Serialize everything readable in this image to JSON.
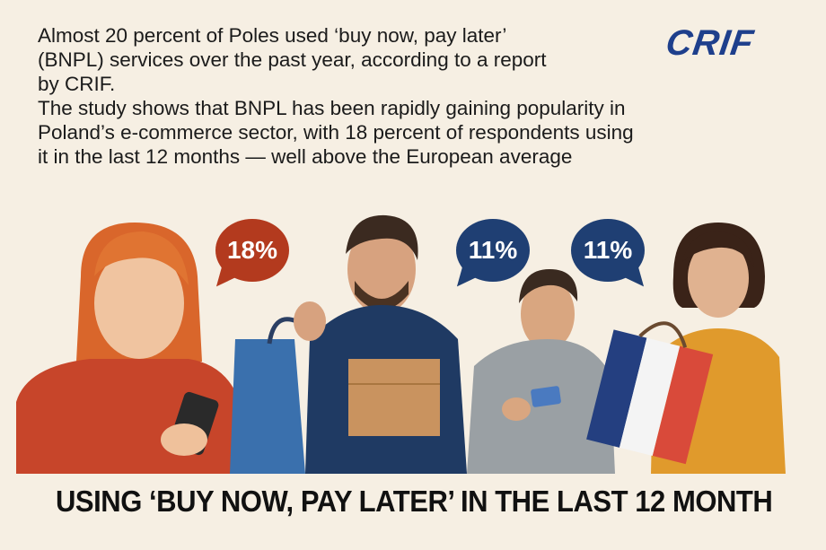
{
  "headline": {
    "line1": "Almost 20 percent of Poles used ‘buy now, pay later’",
    "line2": "(BNPL) services over the past year, according to a report",
    "line3": "by CRIF.",
    "line4": "The study shows that BNPL has been rapidly gaining popularity in",
    "line5": "Poland’s e-commerce sector, with 18 percent of respondents using",
    "line6": "it in the last 12 months — well above the European average"
  },
  "logo": {
    "text": "CRIF",
    "color": "#1e3f8c"
  },
  "bubbles": [
    {
      "value": "18%",
      "color": "#b33a1e"
    },
    {
      "value": "11%",
      "color": "#1f3f73"
    },
    {
      "value": "11%",
      "color": "#1f3f73"
    }
  ],
  "illustration": {
    "people": [
      "woman-with-smartphone",
      "man-with-bag-and-box",
      "man-with-card",
      "woman-with-shopping-bag"
    ]
  },
  "footer": {
    "text": "USING ‘BUY NOW, PAY LATER’ IN THE LAST 12 MONTH"
  }
}
